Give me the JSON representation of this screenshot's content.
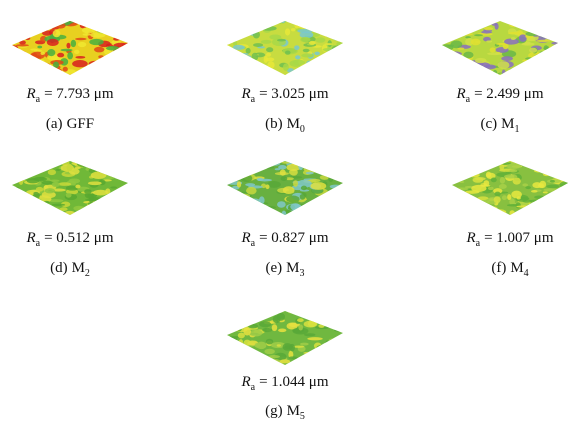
{
  "roughness_symbol": "R",
  "roughness_subscript": "a",
  "panels": [
    {
      "ra": "= 7.793 μm",
      "caption_letter": "(a)",
      "caption_name": "GFF"
    },
    {
      "ra": "= 3.025 μm",
      "caption_letter": "(b)",
      "caption_name": "M",
      "caption_subscript": "0"
    },
    {
      "ra": "= 2.499 μm",
      "caption_letter": "(c)",
      "caption_name": "M",
      "caption_subscript": "1"
    },
    {
      "ra": "= 0.512 μm",
      "caption_letter": "(d)",
      "caption_name": "M",
      "caption_subscript": "2"
    },
    {
      "ra": "= 0.827 μm",
      "caption_letter": "(e)",
      "caption_name": "M",
      "caption_subscript": "3"
    },
    {
      "ra": "= 1.007 μm",
      "caption_letter": "(f)",
      "caption_name": "M",
      "caption_subscript": "4"
    },
    {
      "ra": "= 1.044 μm",
      "caption_letter": "(g)",
      "caption_name": "M",
      "caption_subscript": "5"
    }
  ]
}
